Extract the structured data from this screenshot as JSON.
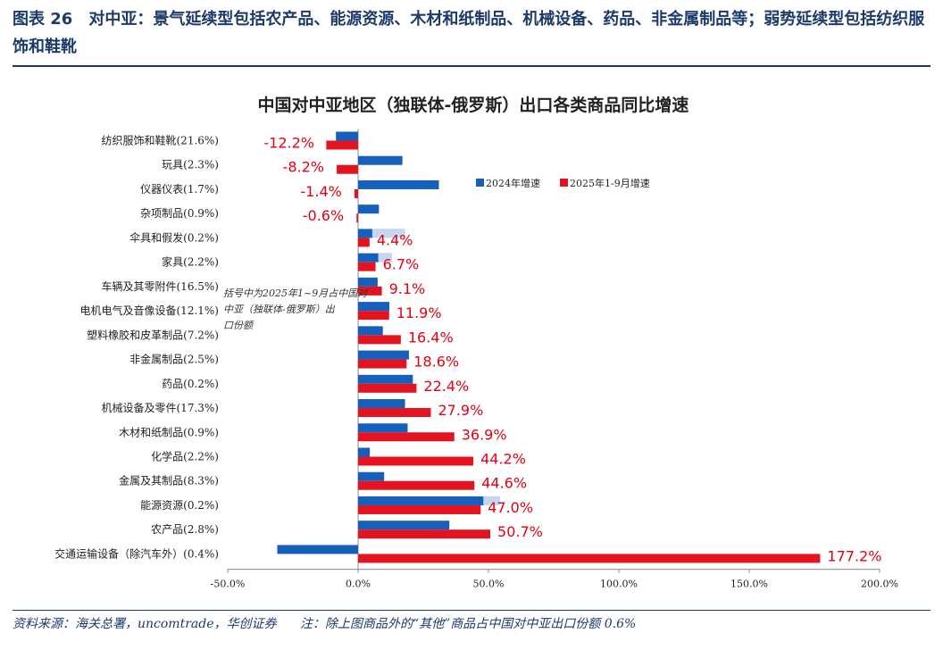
{
  "header": {
    "title": "图表 26　对中亚：景气延续型包括农产品、能源资源、木材和纸制品、机械设备、药品、非金属制品等；弱势延续型包括纺织服饰和鞋靴"
  },
  "footer": {
    "source": "资料来源：海关总署，uncomtrade，华创证券",
    "note": "注：除上图商品外的“其他”商品占中国对中亚出口份额 0.6%"
  },
  "chart_annotation": "括号中为2025年1~9月占中国对中亚（独联体-俄罗斯）出口份额",
  "colors": {
    "series_2024": "#1560bd",
    "series_2025": "#e3141f",
    "label_text": "#e60012"
  },
  "chart_data": {
    "type": "bar",
    "orientation": "horizontal",
    "title": "中国对中亚地区（独联体-俄罗斯）出口各类商品同比增速",
    "xlabel": "",
    "ylabel": "",
    "xlim": [
      -50,
      200
    ],
    "x_ticks": [
      "-50.0%",
      "0.0%",
      "50.0%",
      "100.0%",
      "150.0%",
      "200.0%"
    ],
    "x_tick_values": [
      -50,
      0,
      50,
      100,
      150,
      200
    ],
    "legend_position": "top-right",
    "categories": [
      "纺织服饰和鞋靴(21.6%)",
      "玩具(2.3%)",
      "仪器仪表(1.7%)",
      "杂项制品(0.9%)",
      "伞具和假发(0.2%)",
      "家具(2.2%)",
      "车辆及其零附件(16.5%)",
      "电机电气及音像设备(12.1%)",
      "塑料橡胶和皮革制品(7.2%)",
      "非金属制品(2.5%)",
      "药品(0.2%)",
      "机械设备及零件(17.3%)",
      "木材和纸制品(0.9%)",
      "化学品(2.2%)",
      "金属及其制品(8.3%)",
      "能源资源(0.2%)",
      "农产品(2.8%)",
      "交通运输设备（除汽车外）(0.4%)"
    ],
    "series": [
      {
        "name": "2024年增速",
        "values": [
          -8.5,
          17,
          31,
          8,
          18,
          13,
          7.5,
          12,
          9.5,
          19.5,
          21,
          18,
          19,
          4.5,
          10,
          54.5,
          35,
          -31
        ]
      },
      {
        "name": "2025年1-9月增速",
        "values": [
          -12.2,
          -8.2,
          -1.4,
          -0.6,
          4.4,
          6.7,
          9.1,
          11.9,
          16.4,
          18.6,
          22.4,
          27.9,
          36.9,
          44.2,
          44.6,
          47.0,
          50.7,
          177.2
        ],
        "labels": [
          "-12.2%",
          "-8.2%",
          "-1.4%",
          "-0.6%",
          "4.4%",
          "6.7%",
          "9.1%",
          "11.9%",
          "16.4%",
          "18.6%",
          "22.4%",
          "27.9%",
          "36.9%",
          "44.2%",
          "44.6%",
          "47.0%",
          "50.7%",
          "177.2%"
        ]
      }
    ]
  }
}
